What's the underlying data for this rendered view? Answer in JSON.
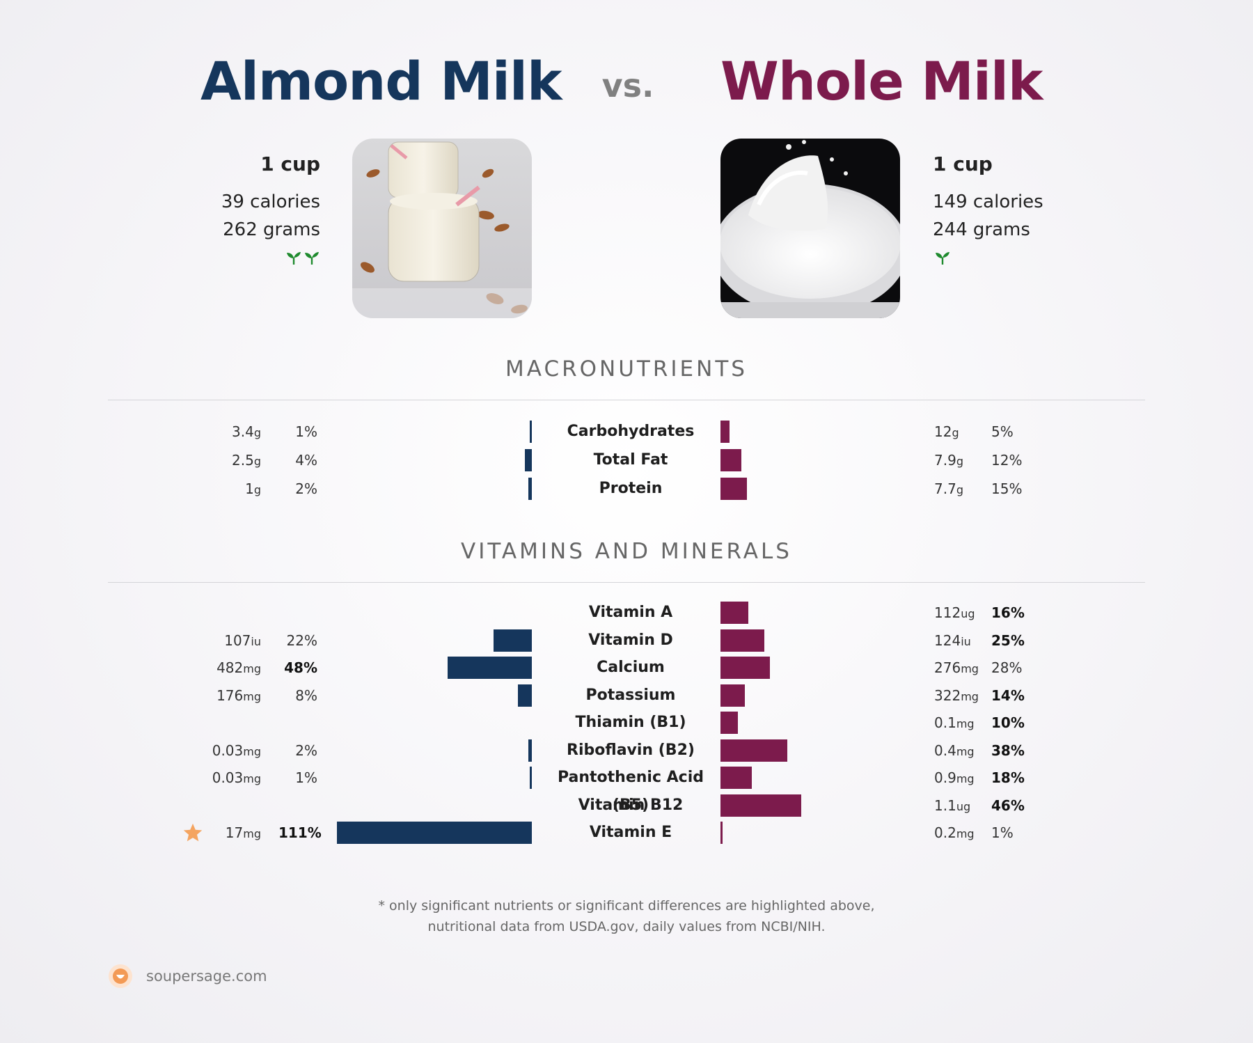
{
  "header": {
    "left_food": "Almond Milk",
    "vs": "vs.",
    "right_food": "Whole Milk"
  },
  "left": {
    "serving": "1 cup",
    "calories": "39 calories",
    "grams": "262 grams",
    "leaf_count": 2
  },
  "right": {
    "serving": "1 cup",
    "calories": "149 calories",
    "grams": "244 grams",
    "leaf_count": 1
  },
  "colors": {
    "left_accent": "#15365c",
    "right_accent": "#7c1b4c",
    "star": "#f4a460",
    "leaf": "#1f8a2e"
  },
  "sections": {
    "macro_title": "MACRONUTRIENTS",
    "vitamins_title": "VITAMINS AND MINERALS"
  },
  "chart_data": [
    {
      "type": "bar",
      "orientation": "butterfly",
      "title": "MACRONUTRIENTS",
      "categories": [
        "Carbohydrates",
        "Total Fat",
        "Protein"
      ],
      "series": [
        {
          "name": "Almond Milk",
          "amounts": [
            "3.4",
            "2.5",
            "1"
          ],
          "units": [
            "g",
            "g",
            "g"
          ],
          "values": [
            1,
            4,
            2
          ],
          "labels": [
            "1%",
            "4%",
            "2%"
          ],
          "bold": [
            false,
            false,
            false
          ]
        },
        {
          "name": "Whole Milk",
          "amounts": [
            "12",
            "7.9",
            "7.7"
          ],
          "units": [
            "g",
            "g",
            "g"
          ],
          "values": [
            5,
            12,
            15
          ],
          "labels": [
            "5%",
            "12%",
            "15%"
          ],
          "bold": [
            false,
            false,
            false
          ]
        }
      ]
    },
    {
      "type": "bar",
      "orientation": "butterfly",
      "title": "VITAMINS AND MINERALS",
      "categories": [
        "Vitamin A",
        "Vitamin D",
        "Calcium",
        "Potassium",
        "Thiamin (B1)",
        "Riboflavin (B2)",
        "Pantothenic Acid (B5)",
        "Vitamin B12",
        "Vitamin E"
      ],
      "series": [
        {
          "name": "Almond Milk",
          "amounts": [
            "",
            "107",
            "482",
            "176",
            "",
            "0.03",
            "0.03",
            "",
            "17"
          ],
          "units": [
            "",
            "iu",
            "mg",
            "mg",
            "",
            "mg",
            "mg",
            "",
            "mg"
          ],
          "values": [
            0,
            22,
            48,
            8,
            0,
            2,
            1,
            0,
            111
          ],
          "labels": [
            "",
            "22%",
            "48%",
            "8%",
            "",
            "2%",
            "1%",
            "",
            "111%"
          ],
          "bold": [
            false,
            false,
            true,
            false,
            false,
            false,
            false,
            false,
            true
          ],
          "star": [
            false,
            false,
            false,
            false,
            false,
            false,
            false,
            false,
            true
          ]
        },
        {
          "name": "Whole Milk",
          "amounts": [
            "112",
            "124",
            "276",
            "322",
            "0.1",
            "0.4",
            "0.9",
            "1.1",
            "0.2"
          ],
          "units": [
            "ug",
            "iu",
            "mg",
            "mg",
            "mg",
            "mg",
            "mg",
            "ug",
            "mg"
          ],
          "values": [
            16,
            25,
            28,
            14,
            10,
            38,
            18,
            46,
            1
          ],
          "labels": [
            "16%",
            "25%",
            "28%",
            "14%",
            "10%",
            "38%",
            "18%",
            "46%",
            "1%"
          ],
          "bold": [
            true,
            true,
            false,
            true,
            true,
            true,
            true,
            true,
            false
          ]
        }
      ]
    }
  ],
  "footnote": {
    "line1": "* only significant nutrients or significant differences are highlighted above,",
    "line2": "nutritional data from USDA.gov, daily values from NCBI/NIH."
  },
  "brand": {
    "name": "soupersage.com"
  }
}
